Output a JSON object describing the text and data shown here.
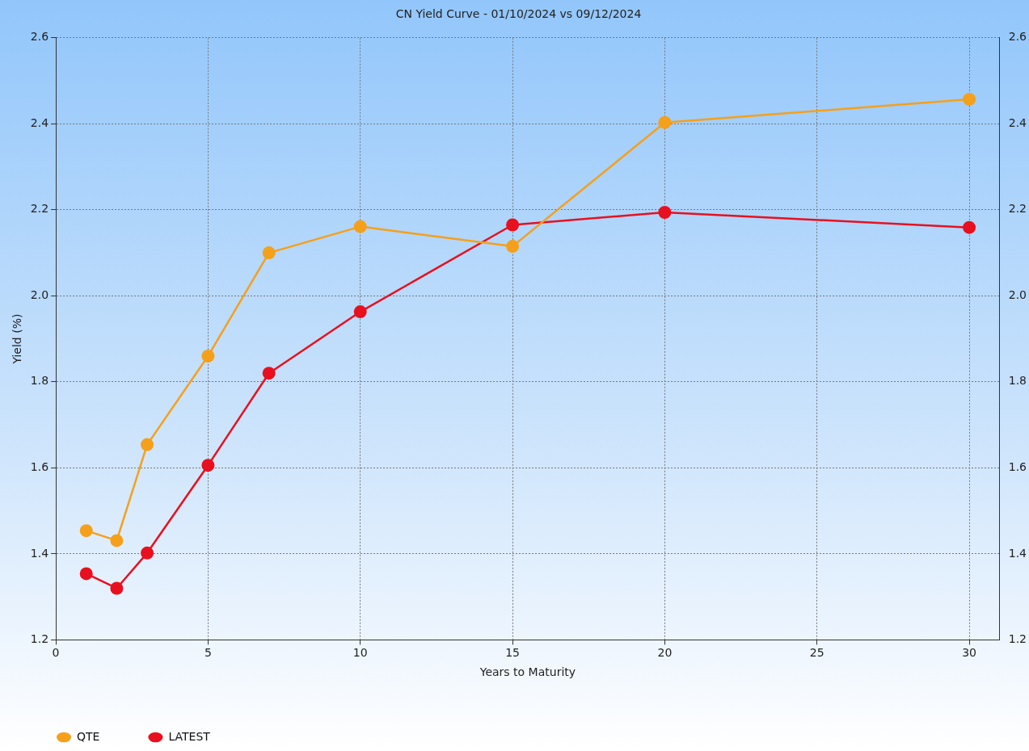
{
  "chart_data": {
    "type": "line",
    "title": "CN Yield Curve - 01/10/2024 vs 09/12/2024",
    "xlabel": "Years to Maturity",
    "ylabel": "Yield (%)",
    "x": [
      1,
      2,
      3,
      5,
      7,
      10,
      15,
      20,
      30
    ],
    "series": [
      {
        "name": "QTE",
        "color": "#f5a01a",
        "values": [
          1.454,
          1.431,
          1.654,
          1.86,
          2.1,
          2.161,
          2.115,
          2.403,
          2.457
        ]
      },
      {
        "name": "LATEST",
        "color": "#e8101e",
        "values": [
          1.354,
          1.32,
          1.402,
          1.606,
          1.82,
          1.963,
          2.165,
          2.194,
          2.159
        ]
      }
    ],
    "xlim": [
      0,
      31
    ],
    "xticks": [
      0,
      5,
      10,
      15,
      20,
      25,
      30
    ],
    "ylim": [
      1.2,
      2.6
    ],
    "yticks": [
      {
        "value": 1.2,
        "label": "1.2"
      },
      {
        "value": 1.4,
        "label": "1.4"
      },
      {
        "value": 1.6,
        "label": "1.6"
      },
      {
        "value": 1.8,
        "label": "1.8"
      },
      {
        "value": 2.0,
        "label": "2.0"
      },
      {
        "value": 2.2,
        "label": "2.2"
      },
      {
        "value": 2.4,
        "label": "2.4"
      },
      {
        "value": 2.6,
        "label": "2.6"
      }
    ],
    "y2lim": [
      1.2,
      2.6
    ],
    "y2ticks": [
      {
        "value": 1.2,
        "label": "1.2"
      },
      {
        "value": 1.4,
        "label": "1.4"
      },
      {
        "value": 1.6,
        "label": "1.6"
      },
      {
        "value": 1.8,
        "label": "1.8"
      },
      {
        "value": 2.0,
        "label": "2.0"
      },
      {
        "value": 2.2,
        "label": "2.2"
      },
      {
        "value": 2.4,
        "label": "2.4"
      },
      {
        "value": 2.6,
        "label": "2.6"
      }
    ],
    "grid": true,
    "legend": "bottom left",
    "marker": "circle",
    "line_style": "solid"
  }
}
